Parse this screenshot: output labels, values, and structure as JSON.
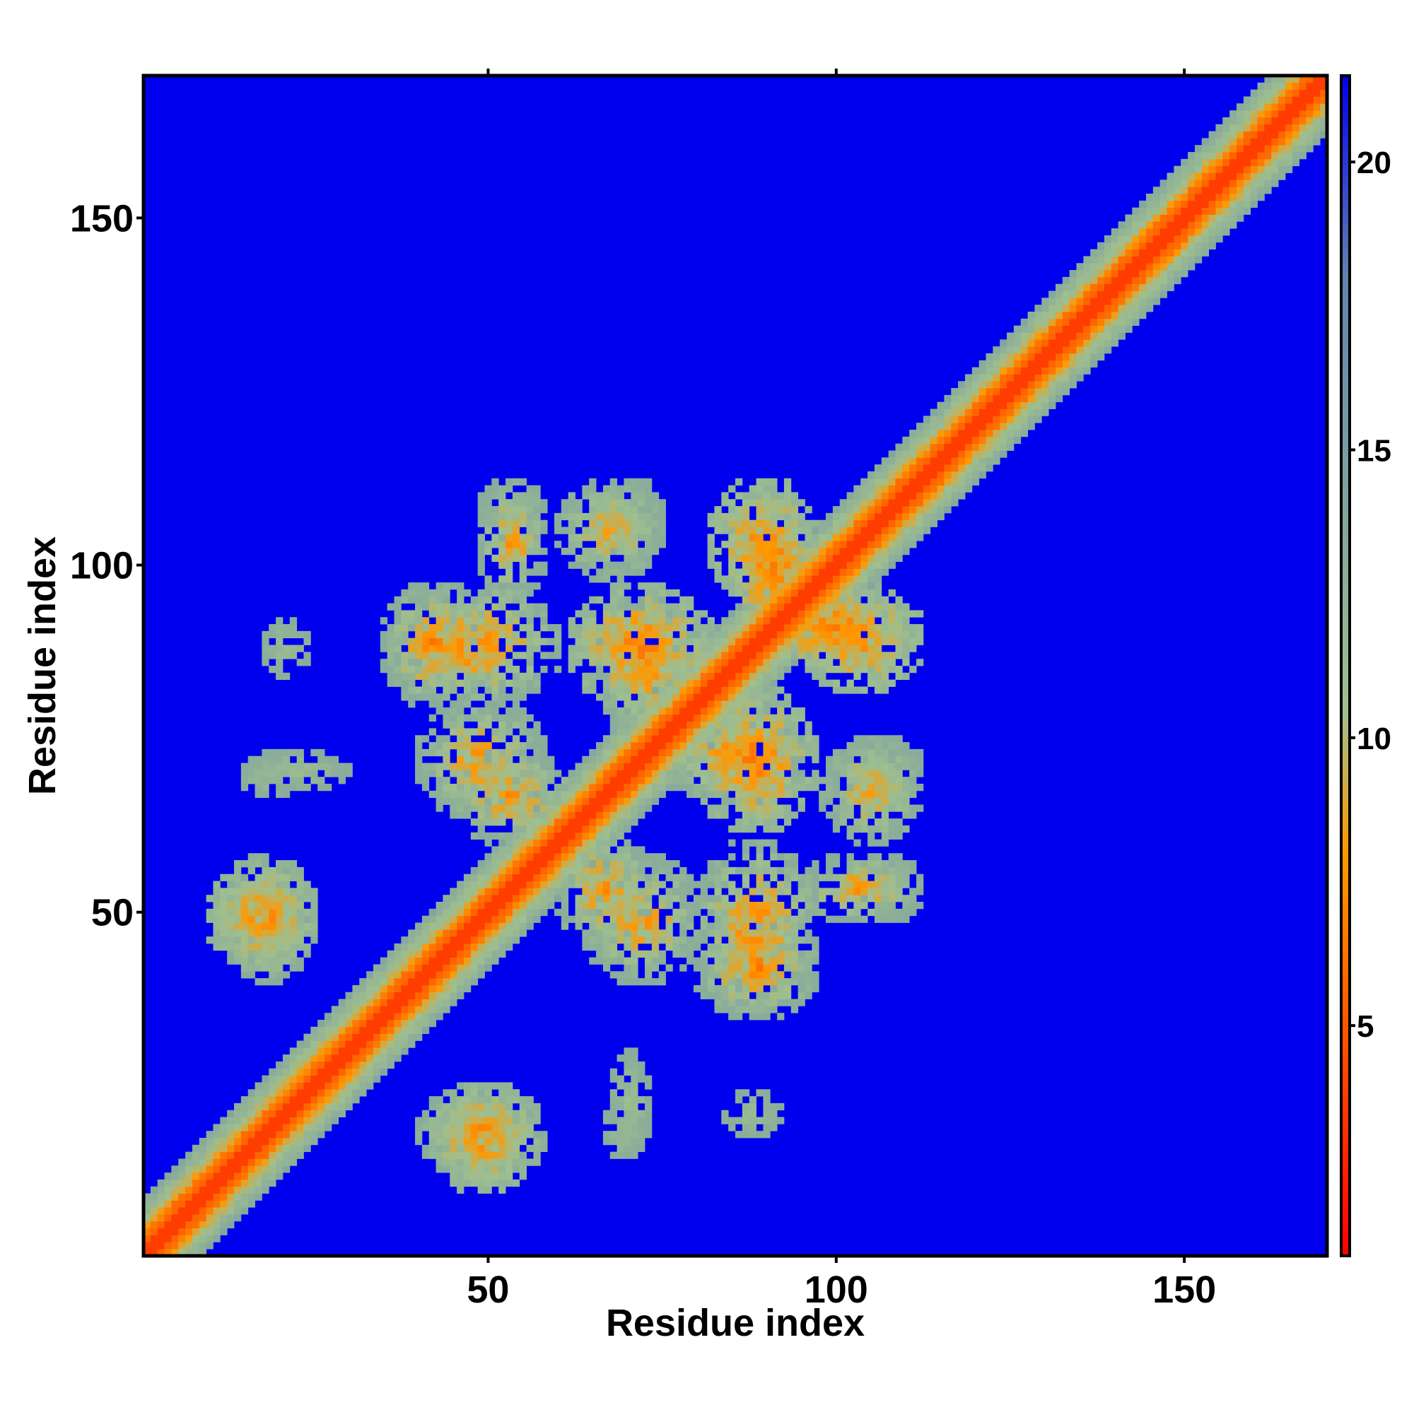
{
  "chart_data": {
    "type": "heatmap",
    "title": "",
    "xlabel": "Residue index",
    "ylabel": "Residue index",
    "n_residues": 170,
    "xlim": [
      1,
      170
    ],
    "ylim": [
      1,
      170
    ],
    "x_ticks": [
      50,
      100,
      150
    ],
    "y_ticks": [
      50,
      100,
      150
    ],
    "colorbar": {
      "range": [
        1,
        21.5
      ],
      "ticks": [
        5,
        10,
        15,
        20
      ],
      "colors": [
        "#ff0000",
        "#ff9900",
        "#9fbf8f",
        "#5f85b0",
        "#0000ee"
      ],
      "stops": [
        1,
        8,
        10.5,
        18,
        21.5
      ]
    },
    "background_value": 21.5,
    "diagonal_profile": [
      {
        "offset": 0,
        "value": 3.8
      },
      {
        "offset": 1,
        "value": 3.8
      },
      {
        "offset": 2,
        "value": 5.6
      },
      {
        "offset": 3,
        "value": 6.6
      },
      {
        "offset": 4,
        "value": 8.8
      },
      {
        "offset": 5,
        "value": 10.3
      },
      {
        "offset": 6,
        "value": 11.2
      },
      {
        "offset": 7,
        "value": 12.0
      },
      {
        "offset": 8,
        "value": 13.2
      }
    ],
    "contact_clusters": [
      {
        "i": [
          49,
          58
        ],
        "j": [
          95,
          112
        ],
        "min_value": 6,
        "max_value": 13
      },
      {
        "i": [
          60,
          75
        ],
        "j": [
          98,
          112
        ],
        "min_value": 7,
        "max_value": 13
      },
      {
        "i": [
          82,
          95
        ],
        "j": [
          95,
          112
        ],
        "min_value": 6,
        "max_value": 12
      },
      {
        "i": [
          35,
          50
        ],
        "j": [
          80,
          97
        ],
        "min_value": 5,
        "max_value": 13
      },
      {
        "i": [
          62,
          82
        ],
        "j": [
          80,
          97
        ],
        "min_value": 5,
        "max_value": 12
      },
      {
        "i": [
          88,
          112
        ],
        "j": [
          85,
          97
        ],
        "min_value": 5,
        "max_value": 12
      },
      {
        "i": [
          40,
          58
        ],
        "j": [
          64,
          80
        ],
        "min_value": 6,
        "max_value": 13
      },
      {
        "i": [
          75,
          95
        ],
        "j": [
          66,
          80
        ],
        "min_value": 6,
        "max_value": 13
      },
      {
        "i": [
          100,
          112
        ],
        "j": [
          66,
          75
        ],
        "min_value": 9,
        "max_value": 13
      },
      {
        "i": [
          15,
          30
        ],
        "j": [
          68,
          73
        ],
        "min_value": 10,
        "max_value": 13
      },
      {
        "i": [
          10,
          25
        ],
        "j": [
          42,
          57
        ],
        "min_value": 6,
        "max_value": 12
      },
      {
        "i": [
          60,
          73
        ],
        "j": [
          45,
          62
        ],
        "min_value": 6,
        "max_value": 13
      },
      {
        "i": [
          80,
          97
        ],
        "j": [
          37,
          60
        ],
        "min_value": 5,
        "max_value": 13
      },
      {
        "i": [
          103,
          112
        ],
        "j": [
          49,
          58
        ],
        "min_value": 10,
        "max_value": 13
      },
      {
        "i": [
          40,
          58
        ],
        "j": [
          12,
          25
        ],
        "min_value": 6,
        "max_value": 13
      },
      {
        "i": [
          67,
          72
        ],
        "j": [
          15,
          22
        ],
        "min_value": 10,
        "max_value": 13
      },
      {
        "i": [
          84,
          92
        ],
        "j": [
          18,
          24
        ],
        "min_value": 10,
        "max_value": 13
      }
    ]
  }
}
